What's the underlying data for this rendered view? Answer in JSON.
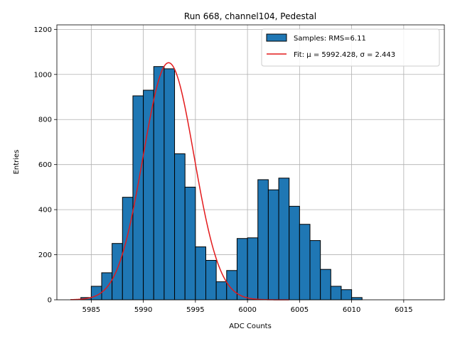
{
  "chart_data": {
    "type": "bar",
    "title": "Run 668, channel104, Pedestal",
    "xlabel": "ADC Counts",
    "ylabel": "Entries",
    "xlim": [
      5981.7,
      6018.9
    ],
    "ylim": [
      0,
      1220
    ],
    "grid": true,
    "legend_position": "top-right",
    "x_ticks": [
      5985,
      5990,
      5995,
      6000,
      6005,
      6010,
      6015
    ],
    "y_ticks": [
      0,
      200,
      400,
      600,
      800,
      1000,
      1200
    ],
    "histogram": {
      "name": "Samples: RMS=6.11",
      "color": "#1f77b4",
      "edge_color": "#000000",
      "bin_edges": [
        5984,
        5985,
        5986,
        5987,
        5988,
        5989,
        5990,
        5991,
        5992,
        5993,
        5994,
        5995,
        5996,
        5997,
        5998,
        5999,
        6000,
        6001,
        6002,
        6003,
        6004,
        6005,
        6006,
        6007,
        6008,
        6009,
        6010,
        6011,
        6012
      ],
      "values": [
        10,
        60,
        120,
        250,
        455,
        905,
        930,
        1035,
        1025,
        648,
        500,
        235,
        175,
        80,
        130,
        272,
        275,
        533,
        488,
        540,
        415,
        335,
        263,
        135,
        60,
        45,
        10,
        0
      ]
    },
    "fit": {
      "name": "Fit: μ = 5992.428, σ = 2.443",
      "color": "#e31a1c",
      "mu": 5992.428,
      "sigma": 2.443,
      "amplitude": 1052,
      "x_range": [
        5983,
        6004
      ]
    }
  }
}
